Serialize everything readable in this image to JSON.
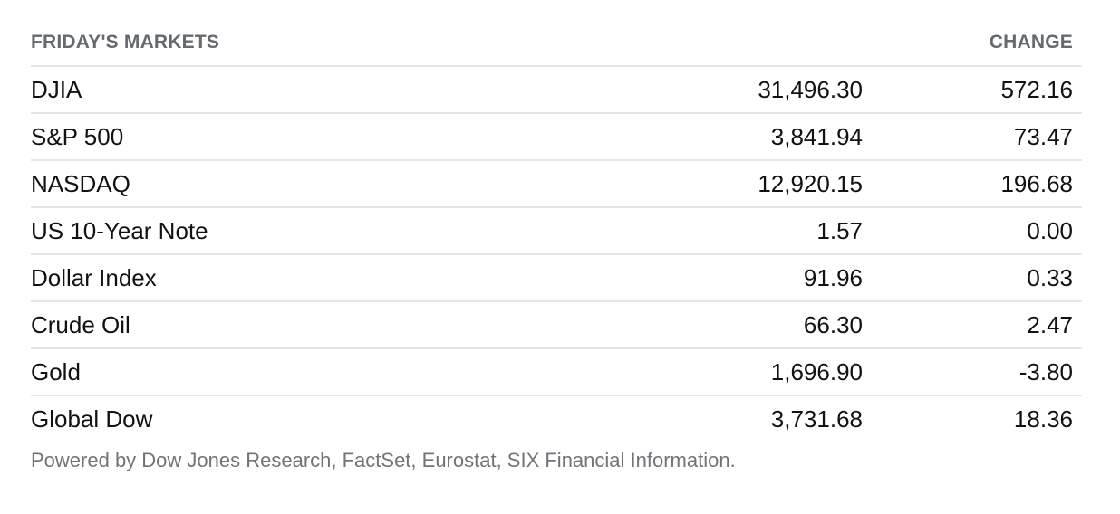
{
  "markets": {
    "header": {
      "title": "FRIDAY'S MARKETS",
      "change_label": "CHANGE"
    },
    "rows": [
      {
        "name": "DJIA",
        "value": "31,496.30",
        "change": "572.16"
      },
      {
        "name": "S&P 500",
        "value": "3,841.94",
        "change": "73.47"
      },
      {
        "name": "NASDAQ",
        "value": "12,920.15",
        "change": "196.68"
      },
      {
        "name": "US 10-Year Note",
        "value": "1.57",
        "change": "0.00"
      },
      {
        "name": "Dollar Index",
        "value": "91.96",
        "change": "0.33"
      },
      {
        "name": "Crude Oil",
        "value": "66.30",
        "change": "2.47"
      },
      {
        "name": "Gold",
        "value": "1,696.90",
        "change": "-3.80"
      },
      {
        "name": "Global Dow",
        "value": "3,731.68",
        "change": "18.36"
      }
    ],
    "source_note": "Powered by Dow Jones Research, FactSet, Eurostat, SIX Financial Information."
  },
  "colors": {
    "header_text": "#666a6e",
    "body_text": "#111111",
    "divider": "#e6e6e6",
    "note_text": "#707478"
  }
}
